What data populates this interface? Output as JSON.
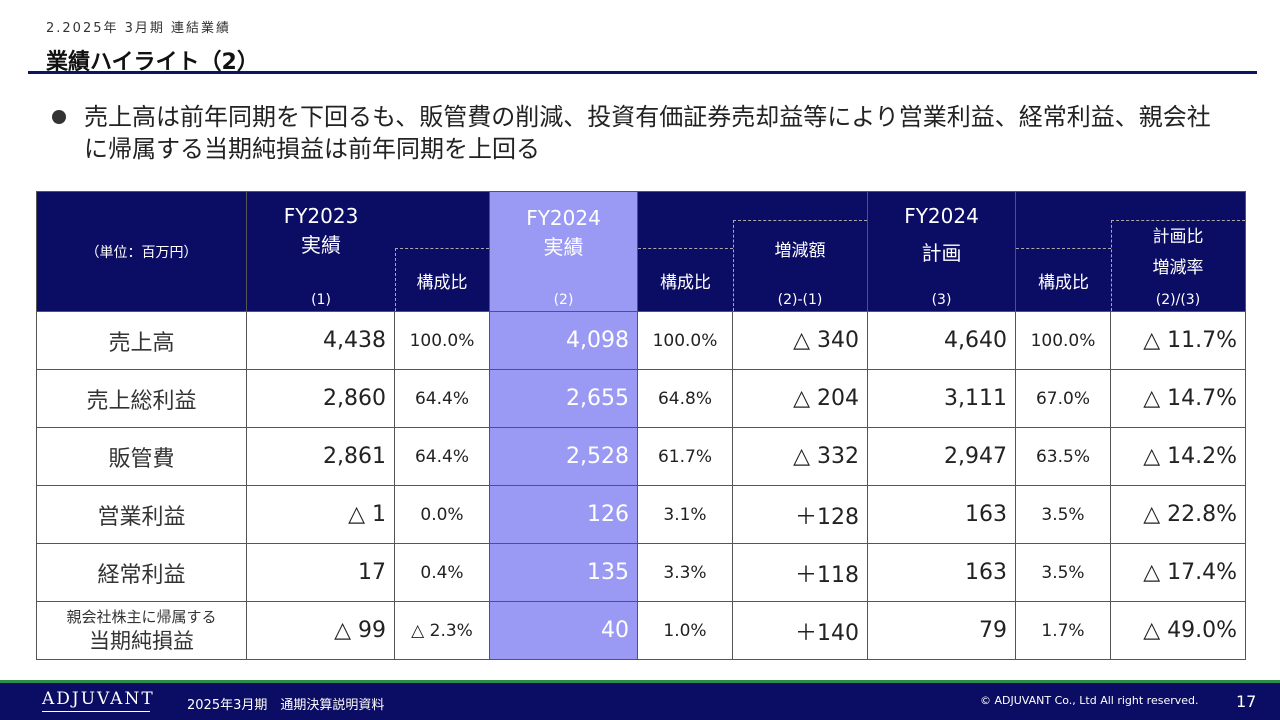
{
  "header": {
    "section_label": "2.2025年 3月期 連結業績",
    "title": "業績ハイライト（2）"
  },
  "bullet": {
    "text": "売上高は前年同期を下回るも、販管費の削減、投資有価証券売却益等により営業利益、経常利益、親会社に帰属する当期純損益は前年同期を上回る"
  },
  "table": {
    "unit_label": "（単位：百万円）",
    "col_fy2023": {
      "title": "FY2023",
      "subtitle": "実績",
      "ref": "(1)"
    },
    "col_fy2023_ratio": "構成比",
    "col_fy2024": {
      "title": "FY2024",
      "subtitle": "実績",
      "ref": "(2)"
    },
    "col_fy2024_ratio": "構成比",
    "col_diff": {
      "title": "増減額",
      "ref": "(2)-(1)"
    },
    "col_plan": {
      "title": "FY2024",
      "subtitle": "計画",
      "ref": "(3)"
    },
    "col_plan_ratio": "構成比",
    "col_plan_rate": {
      "title1": "計画比",
      "title2": "増減率",
      "ref": "(2)/(3)"
    },
    "rows": [
      {
        "label": "売上高",
        "fy2023": "4,438",
        "fy2023_ratio": "100.0%",
        "fy2024": "4,098",
        "fy2024_ratio": "100.0%",
        "diff": "△ 340",
        "plan": "4,640",
        "plan_ratio": "100.0%",
        "rate": "△ 11.7%"
      },
      {
        "label": "売上総利益",
        "fy2023": "2,860",
        "fy2023_ratio": "64.4%",
        "fy2024": "2,655",
        "fy2024_ratio": "64.8%",
        "diff": "△ 204",
        "plan": "3,111",
        "plan_ratio": "67.0%",
        "rate": "△ 14.7%"
      },
      {
        "label": "販管費",
        "fy2023": "2,861",
        "fy2023_ratio": "64.4%",
        "fy2024": "2,528",
        "fy2024_ratio": "61.7%",
        "diff": "△ 332",
        "plan": "2,947",
        "plan_ratio": "63.5%",
        "rate": "△ 14.2%"
      },
      {
        "label": "営業利益",
        "fy2023": "△ 1",
        "fy2023_ratio": "0.0%",
        "fy2024": "126",
        "fy2024_ratio": "3.1%",
        "diff": "＋128",
        "plan": "163",
        "plan_ratio": "3.5%",
        "rate": "△ 22.8%"
      },
      {
        "label": "経常利益",
        "fy2023": "17",
        "fy2023_ratio": "0.4%",
        "fy2024": "135",
        "fy2024_ratio": "3.3%",
        "diff": "＋118",
        "plan": "163",
        "plan_ratio": "3.5%",
        "rate": "△ 17.4%"
      },
      {
        "label_small": "親会社株主に帰属する",
        "label": "当期純損益",
        "fy2023": "△ 99",
        "fy2023_ratio": "△ 2.3%",
        "fy2024": "40",
        "fy2024_ratio": "1.0%",
        "diff": "＋140",
        "plan": "79",
        "plan_ratio": "1.7%",
        "rate": "△ 49.0%"
      }
    ]
  },
  "footer": {
    "logo": "ADJUVANT",
    "document": "2025年3月期　通期決算説明資料",
    "copyright": "© ADJUVANT Co., Ltd All right reserved.",
    "page": "17"
  }
}
